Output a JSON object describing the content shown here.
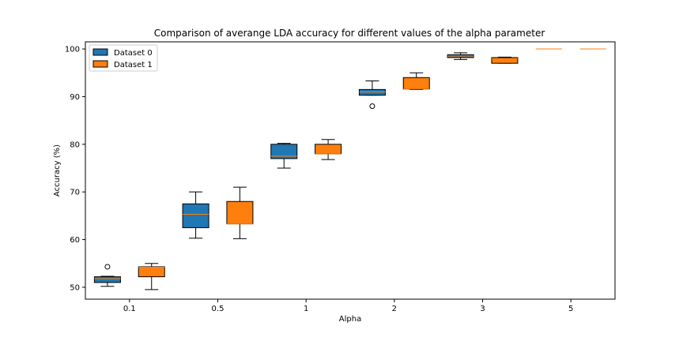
{
  "chart_data": {
    "type": "boxplot",
    "title": "Comparison of averange LDA accuracy for different values of the alpha parameter",
    "xlabel": "Alpha",
    "ylabel": "Accuracy (%)",
    "categories": [
      "0.1",
      "0.5",
      "1",
      "2",
      "3",
      "5"
    ],
    "ylim": [
      47.5,
      101.5
    ],
    "yticks": [
      50,
      60,
      70,
      80,
      90,
      100
    ],
    "grid": false,
    "legend_position": "top-left",
    "series": [
      {
        "name": "Dataset 0",
        "color": "#1f77b4",
        "boxes": [
          {
            "whislo": 50.2,
            "q1": 51.0,
            "med": 51.8,
            "q3": 52.2,
            "whishi": 52.3,
            "fliers": [
              54.3
            ]
          },
          {
            "whislo": 60.3,
            "q1": 62.5,
            "med": 65.3,
            "q3": 67.5,
            "whishi": 70.0,
            "fliers": []
          },
          {
            "whislo": 75.0,
            "q1": 77.0,
            "med": 77.5,
            "q3": 80.0,
            "whishi": 80.2,
            "fliers": []
          },
          {
            "whislo": 90.3,
            "q1": 90.3,
            "med": 91.0,
            "q3": 91.5,
            "whishi": 93.3,
            "fliers": [
              88.0
            ]
          },
          {
            "whislo": 97.8,
            "q1": 98.2,
            "med": 98.5,
            "q3": 98.8,
            "whishi": 99.2,
            "fliers": []
          },
          {
            "whislo": 100.0,
            "q1": 100.0,
            "med": 100.0,
            "q3": 100.0,
            "whishi": 100.0,
            "fliers": []
          }
        ]
      },
      {
        "name": "Dataset 1",
        "color": "#ff7f0e",
        "boxes": [
          {
            "whislo": 49.5,
            "q1": 52.2,
            "med": 54.2,
            "q3": 54.3,
            "whishi": 55.0,
            "fliers": []
          },
          {
            "whislo": 60.2,
            "q1": 63.3,
            "med": 63.3,
            "q3": 68.0,
            "whishi": 71.0,
            "fliers": []
          },
          {
            "whislo": 76.8,
            "q1": 78.0,
            "med": 78.0,
            "q3": 80.0,
            "whishi": 81.0,
            "fliers": []
          },
          {
            "whislo": 91.5,
            "q1": 91.6,
            "med": 91.6,
            "q3": 94.0,
            "whishi": 95.0,
            "fliers": []
          },
          {
            "whislo": 97.0,
            "q1": 97.0,
            "med": 98.0,
            "q3": 98.2,
            "whishi": 98.3,
            "fliers": []
          },
          {
            "whislo": 100.0,
            "q1": 100.0,
            "med": 100.0,
            "q3": 100.0,
            "whishi": 100.0,
            "fliers": []
          }
        ]
      }
    ]
  }
}
